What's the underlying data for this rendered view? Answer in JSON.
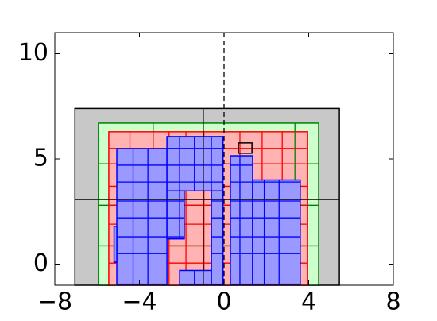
{
  "chart_data": {
    "type": "rects",
    "xlim": [
      -8,
      8
    ],
    "ylim": [
      -1,
      11
    ],
    "xticks": [
      {
        "value": -8,
        "label": "−8"
      },
      {
        "value": -4,
        "label": "−4"
      },
      0,
      4,
      8
    ],
    "yticks": [
      0,
      5,
      10
    ],
    "layers": [
      {
        "fill": "#c8c8c8",
        "edge": "#000000",
        "rects": [
          {
            "x": [
              -7.05,
              5.45
            ],
            "y": [
              -1,
              7.4
            ]
          }
        ]
      },
      {
        "fill": "#ccffcc",
        "edge": "#008000",
        "rects": [
          {
            "x": [
              -5.94,
              4.47
            ],
            "y": [
              -1,
              6.7
            ]
          }
        ]
      },
      {
        "fill": "#ffb3b3",
        "edge": "#ff0000",
        "rects": [
          {
            "x": [
              -5.45,
              3.95
            ],
            "y": [
              -1,
              6.29
            ]
          }
        ]
      },
      {
        "fill": "#9999ff",
        "edge": "#0000ff",
        "rects": [
          {
            "x": [
              -5.07,
              -2.7
            ],
            "y": [
              -0.95,
              5.49
            ]
          },
          {
            "x": [
              -2.7,
              -0.05
            ],
            "y": [
              3.48,
              6.06
            ]
          },
          {
            "x": [
              -2.7,
              -1.88
            ],
            "y": [
              1.2,
              3.48
            ]
          },
          {
            "x": [
              -2.1,
              -0.05
            ],
            "y": [
              -0.95,
              -0.3
            ]
          },
          {
            "x": [
              -0.6,
              -0.05
            ],
            "y": [
              -0.95,
              3.48
            ]
          },
          {
            "x": [
              0.3,
              1.35
            ],
            "y": [
              -0.95,
              5.15
            ]
          },
          {
            "x": [
              1.35,
              3.6
            ],
            "y": [
              -0.95,
              4.0
            ]
          },
          {
            "x": [
              -5.2,
              -5.07
            ],
            "y": [
              0.1,
              1.8
            ]
          }
        ]
      },
      {
        "fill": "none",
        "edge": "#000000",
        "rects": [
          {
            "x": [
              0.68,
              1.32
            ],
            "y": [
              5.27,
              5.76
            ]
          }
        ]
      }
    ],
    "gridlines": [
      {
        "color": "#008000",
        "x": [
          -5.94,
          4.47
        ],
        "y": [
          -1,
          6.7
        ],
        "vlines": [
          -3.35,
          3.35
        ],
        "hlines": [
          0.87,
          2.8,
          4.77
        ]
      },
      {
        "color": "#ff0000",
        "x": [
          -5.45,
          3.95
        ],
        "y": [
          -1,
          6.29
        ],
        "vlines": [
          -4.45,
          -3.35,
          -2.6,
          -1.8,
          -0.95,
          0.75,
          1.8,
          2.75
        ],
        "hlines": [
          0.05,
          0.87,
          1.9,
          2.8,
          3.7,
          4.77,
          5.5
        ]
      },
      {
        "color": "#0000ff",
        "x": [
          -5.07,
          3.6
        ],
        "y": [
          -0.95,
          6.06
        ],
        "vlines": [
          -4.3,
          -3.6,
          -2.1,
          -1.4,
          -0.6,
          0.75,
          1.9,
          2.6
        ],
        "hlines": [
          0.5,
          1.3,
          2.2,
          3.0,
          3.9,
          4.7,
          5.5
        ]
      },
      {
        "color": "#000000",
        "x": [
          -7.05,
          5.45
        ],
        "y": [
          -1,
          7.4
        ],
        "vlines": [
          -0.98
        ],
        "hlines": [
          3.07
        ]
      }
    ],
    "dashed_x": 0
  }
}
